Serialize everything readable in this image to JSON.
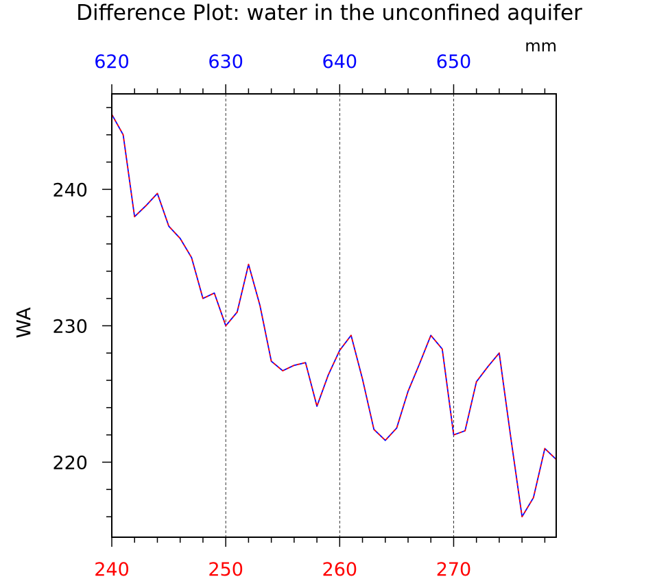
{
  "chart_data": {
    "type": "line",
    "title": "Difference Plot: water in the unconfined aquifer",
    "ylabel": "WA",
    "top_axis_unit": "mm",
    "xlim": [
      240,
      279
    ],
    "ylim": [
      214.5,
      247
    ],
    "top_xlim": [
      620,
      659
    ],
    "x_ticks": [
      240,
      250,
      260,
      270
    ],
    "top_x_ticks": [
      620,
      630,
      640,
      650
    ],
    "y_ticks": [
      220,
      230,
      240
    ],
    "x_tick_labels": [
      "240",
      "250",
      "260",
      "270"
    ],
    "top_x_tick_labels": [
      "620",
      "630",
      "640",
      "650"
    ],
    "y_tick_labels": [
      "220",
      "230",
      "240"
    ],
    "grid": "vertical-dashed",
    "colors": {
      "bottom_axis": "#ff0000",
      "top_axis": "#0000ff",
      "series_a": "#0000ff",
      "series_b": "#ff0000",
      "frame": "#000000"
    },
    "x": [
      240,
      241,
      242,
      243,
      244,
      245,
      246,
      247,
      248,
      249,
      250,
      251,
      252,
      253,
      254,
      255,
      256,
      257,
      258,
      259,
      260,
      261,
      262,
      263,
      264,
      265,
      266,
      267,
      268,
      269,
      270,
      271,
      272,
      273,
      274,
      275,
      276,
      277,
      278,
      279
    ],
    "series": [
      {
        "values": [
          245.5,
          244,
          238,
          238.8,
          239.7,
          237.3,
          236.4,
          235,
          232,
          232.4,
          230,
          231,
          234.5,
          231.5,
          227.4,
          226.7,
          227.1,
          227.3,
          224.1,
          226.4,
          228.2,
          229.3,
          226.1,
          222.4,
          221.6,
          222.5,
          225.2,
          227.2,
          229.3,
          228.3,
          222,
          222.3,
          225.9,
          227,
          228,
          221.9,
          216,
          217.4,
          221,
          220.2
        ]
      },
      {
        "values": [
          245.5,
          244,
          238,
          238.8,
          239.7,
          237.3,
          236.4,
          235,
          232,
          232.4,
          230,
          231,
          234.5,
          231.5,
          227.4,
          226.7,
          227.1,
          227.3,
          224.1,
          226.4,
          228.2,
          229.3,
          226.1,
          222.4,
          221.6,
          222.5,
          225.2,
          227.2,
          229.3,
          228.3,
          222,
          222.3,
          225.9,
          227,
          228,
          221.9,
          216,
          217.4,
          221,
          220.2
        ]
      }
    ]
  }
}
